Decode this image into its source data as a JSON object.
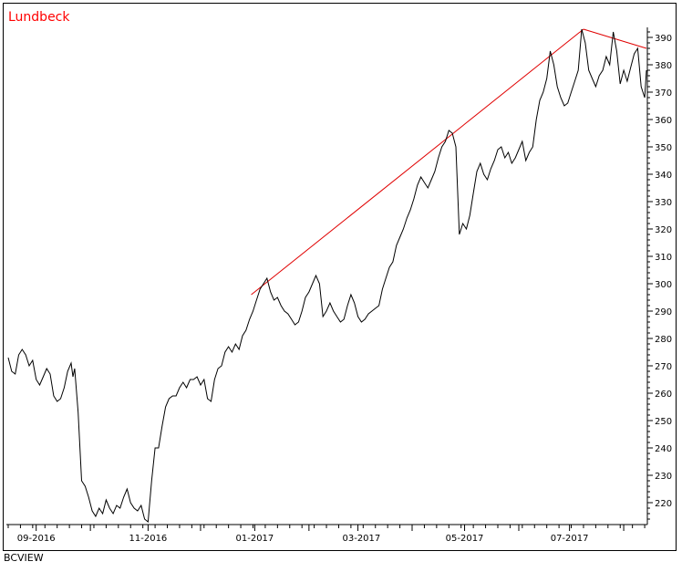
{
  "source": "BCVIEW",
  "chart_data": {
    "type": "line",
    "title": "Lundbeck",
    "title_color": "#ff0000",
    "line_color": "#000000",
    "trendline_color": "#e00000",
    "xlabel": "",
    "ylabel": "",
    "ylim": [
      213,
      393
    ],
    "xlim": [
      0,
      365
    ],
    "y_ticks": [
      220,
      230,
      240,
      250,
      260,
      270,
      280,
      290,
      300,
      310,
      320,
      330,
      340,
      350,
      360,
      370,
      380,
      390
    ],
    "x_tick_labels": [
      {
        "label": "09-2016",
        "x": 16
      },
      {
        "label": "11-2016",
        "x": 80
      },
      {
        "label": "01-2017",
        "x": 141
      },
      {
        "label": "03-2017",
        "x": 202
      },
      {
        "label": "05-2017",
        "x": 261
      },
      {
        "label": "07-2017",
        "x": 321
      }
    ],
    "grid": false,
    "series": [
      {
        "values": [
          [
            0,
            273
          ],
          [
            2,
            268
          ],
          [
            4,
            267
          ],
          [
            6,
            274
          ],
          [
            8,
            276
          ],
          [
            10,
            274
          ],
          [
            12,
            270
          ],
          [
            14,
            272
          ],
          [
            16,
            265
          ],
          [
            18,
            263
          ],
          [
            20,
            266
          ],
          [
            22,
            269
          ],
          [
            24,
            267
          ],
          [
            26,
            259
          ],
          [
            28,
            257
          ],
          [
            30,
            258
          ],
          [
            32,
            262
          ],
          [
            34,
            268
          ],
          [
            36,
            271
          ],
          [
            37,
            266
          ],
          [
            38,
            269
          ],
          [
            40,
            253
          ],
          [
            42,
            228
          ],
          [
            44,
            226
          ],
          [
            46,
            222
          ],
          [
            48,
            217
          ],
          [
            50,
            215
          ],
          [
            52,
            218
          ],
          [
            54,
            216
          ],
          [
            56,
            221
          ],
          [
            58,
            218
          ],
          [
            60,
            216
          ],
          [
            62,
            219
          ],
          [
            64,
            218
          ],
          [
            66,
            222
          ],
          [
            68,
            225
          ],
          [
            70,
            220
          ],
          [
            72,
            218
          ],
          [
            74,
            217
          ],
          [
            76,
            219
          ],
          [
            78,
            214
          ],
          [
            80,
            213
          ],
          [
            82,
            228
          ],
          [
            84,
            240
          ],
          [
            86,
            240
          ],
          [
            88,
            248
          ],
          [
            90,
            255
          ],
          [
            92,
            258
          ],
          [
            94,
            259
          ],
          [
            96,
            259
          ],
          [
            98,
            262
          ],
          [
            100,
            264
          ],
          [
            102,
            262
          ],
          [
            104,
            265
          ],
          [
            106,
            265
          ],
          [
            108,
            266
          ],
          [
            110,
            263
          ],
          [
            112,
            265
          ],
          [
            114,
            258
          ],
          [
            116,
            257
          ],
          [
            118,
            265
          ],
          [
            120,
            269
          ],
          [
            122,
            270
          ],
          [
            124,
            275
          ],
          [
            126,
            277
          ],
          [
            128,
            275
          ],
          [
            130,
            278
          ],
          [
            132,
            276
          ],
          [
            134,
            281
          ],
          [
            136,
            283
          ],
          [
            138,
            287
          ],
          [
            140,
            290
          ],
          [
            142,
            294
          ],
          [
            144,
            298
          ],
          [
            146,
            300
          ],
          [
            148,
            302
          ],
          [
            150,
            297
          ],
          [
            152,
            294
          ],
          [
            154,
            295
          ],
          [
            156,
            292
          ],
          [
            158,
            290
          ],
          [
            160,
            289
          ],
          [
            162,
            287
          ],
          [
            164,
            285
          ],
          [
            166,
            286
          ],
          [
            168,
            290
          ],
          [
            170,
            295
          ],
          [
            172,
            297
          ],
          [
            174,
            300
          ],
          [
            176,
            303
          ],
          [
            178,
            300
          ],
          [
            180,
            288
          ],
          [
            182,
            290
          ],
          [
            184,
            293
          ],
          [
            186,
            290
          ],
          [
            188,
            288
          ],
          [
            190,
            286
          ],
          [
            192,
            287
          ],
          [
            194,
            292
          ],
          [
            196,
            296
          ],
          [
            198,
            293
          ],
          [
            200,
            288
          ],
          [
            202,
            286
          ],
          [
            204,
            287
          ],
          [
            206,
            289
          ],
          [
            208,
            290
          ],
          [
            210,
            291
          ],
          [
            212,
            292
          ],
          [
            214,
            298
          ],
          [
            216,
            302
          ],
          [
            218,
            306
          ],
          [
            220,
            308
          ],
          [
            222,
            314
          ],
          [
            224,
            317
          ],
          [
            226,
            320
          ],
          [
            228,
            324
          ],
          [
            230,
            327
          ],
          [
            232,
            331
          ],
          [
            234,
            336
          ],
          [
            236,
            339
          ],
          [
            238,
            337
          ],
          [
            240,
            335
          ],
          [
            242,
            338
          ],
          [
            244,
            341
          ],
          [
            246,
            346
          ],
          [
            248,
            350
          ],
          [
            250,
            352
          ],
          [
            252,
            356
          ],
          [
            254,
            355
          ],
          [
            256,
            350
          ],
          [
            258,
            318
          ],
          [
            260,
            322
          ],
          [
            262,
            320
          ],
          [
            264,
            325
          ],
          [
            266,
            333
          ],
          [
            268,
            341
          ],
          [
            270,
            344
          ],
          [
            272,
            340
          ],
          [
            274,
            338
          ],
          [
            276,
            342
          ],
          [
            278,
            345
          ],
          [
            280,
            349
          ],
          [
            282,
            350
          ],
          [
            284,
            346
          ],
          [
            286,
            348
          ],
          [
            288,
            344
          ],
          [
            290,
            346
          ],
          [
            292,
            349
          ],
          [
            294,
            352
          ],
          [
            296,
            345
          ],
          [
            298,
            348
          ],
          [
            300,
            350
          ],
          [
            302,
            360
          ],
          [
            304,
            367
          ],
          [
            306,
            370
          ],
          [
            308,
            375
          ],
          [
            310,
            385
          ],
          [
            312,
            380
          ],
          [
            314,
            372
          ],
          [
            316,
            368
          ],
          [
            318,
            365
          ],
          [
            320,
            366
          ],
          [
            322,
            370
          ],
          [
            324,
            374
          ],
          [
            326,
            378
          ],
          [
            328,
            393
          ],
          [
            330,
            388
          ],
          [
            332,
            378
          ],
          [
            334,
            375
          ],
          [
            336,
            372
          ],
          [
            338,
            376
          ],
          [
            340,
            378
          ],
          [
            342,
            383
          ],
          [
            344,
            380
          ],
          [
            346,
            392
          ],
          [
            348,
            385
          ],
          [
            350,
            373
          ],
          [
            352,
            378
          ],
          [
            354,
            374
          ],
          [
            356,
            379
          ],
          [
            358,
            384
          ],
          [
            360,
            386
          ],
          [
            362,
            372
          ],
          [
            364,
            368
          ],
          [
            365,
            378
          ]
        ]
      }
    ],
    "trendlines": [
      {
        "from": [
          139,
          296
        ],
        "to": [
          329,
          393
        ]
      },
      {
        "from": [
          329,
          393
        ],
        "to": [
          365,
          386
        ]
      }
    ]
  }
}
